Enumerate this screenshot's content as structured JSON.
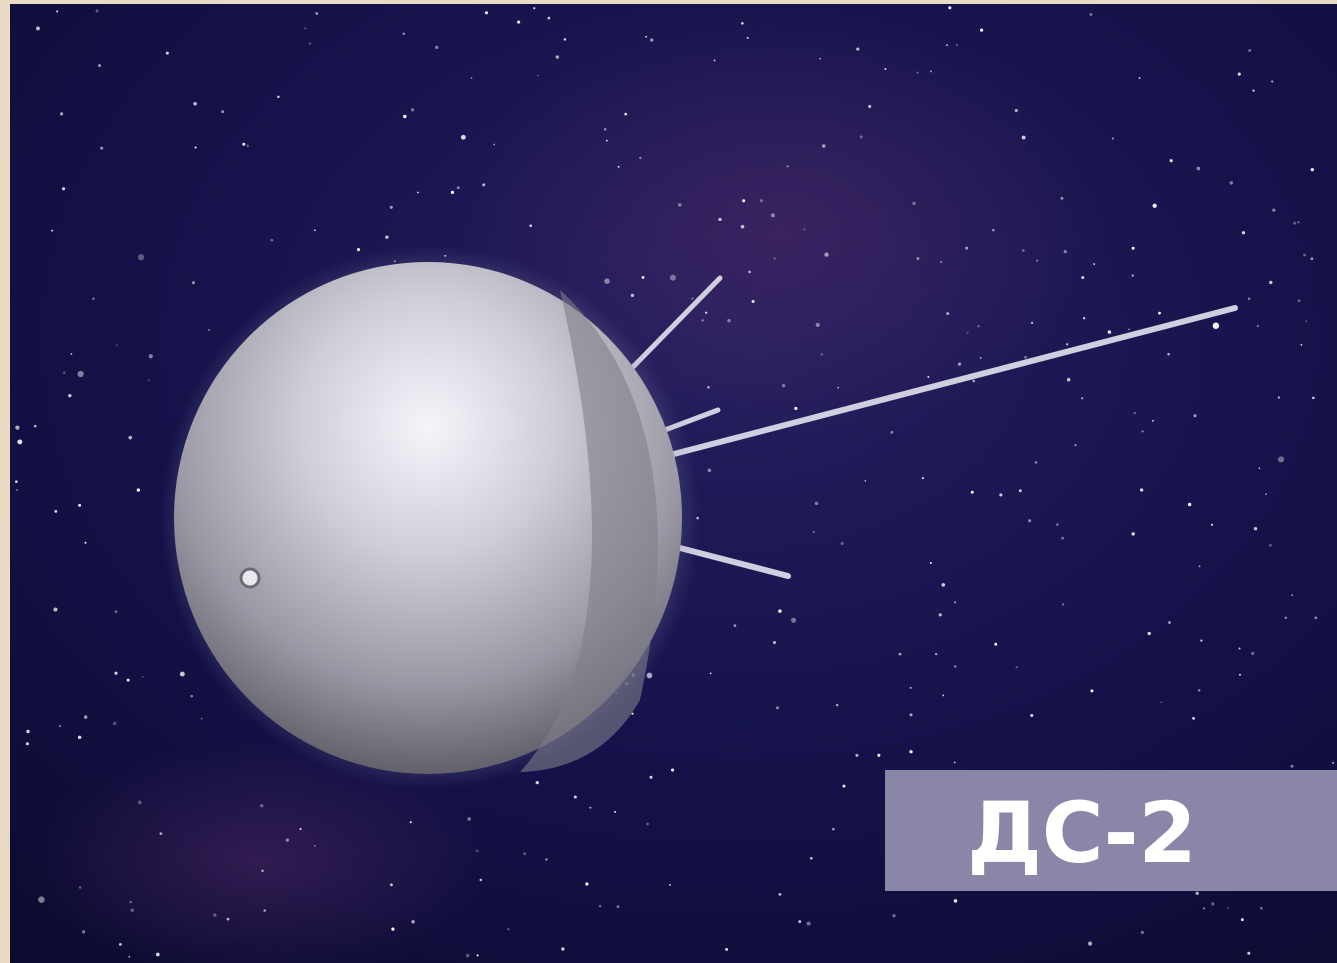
{
  "label": "ДС-2"
}
